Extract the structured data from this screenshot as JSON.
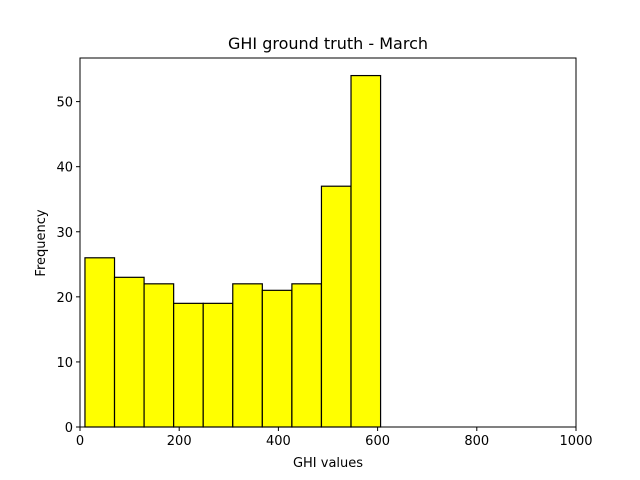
{
  "chart_data": {
    "type": "bar",
    "title": "GHI ground truth - March",
    "xlabel": "GHI values",
    "ylabel": "Frequency",
    "xlim": [
      0,
      1000
    ],
    "ylim": [
      0,
      56.7
    ],
    "xticks": [
      0,
      200,
      400,
      600,
      800,
      1000
    ],
    "yticks": [
      0,
      10,
      20,
      30,
      40,
      50
    ],
    "grid": false,
    "bin_edges": [
      10,
      69.6,
      129.2,
      188.8,
      248.4,
      308,
      367.6,
      427.2,
      486.8,
      546.4,
      606
    ],
    "values": [
      26,
      23,
      22,
      19,
      19,
      22,
      21,
      22,
      37,
      54
    ],
    "colors": {
      "bar_fill": "#ffff00",
      "bar_edge": "#000000",
      "axes": "#000000"
    }
  }
}
